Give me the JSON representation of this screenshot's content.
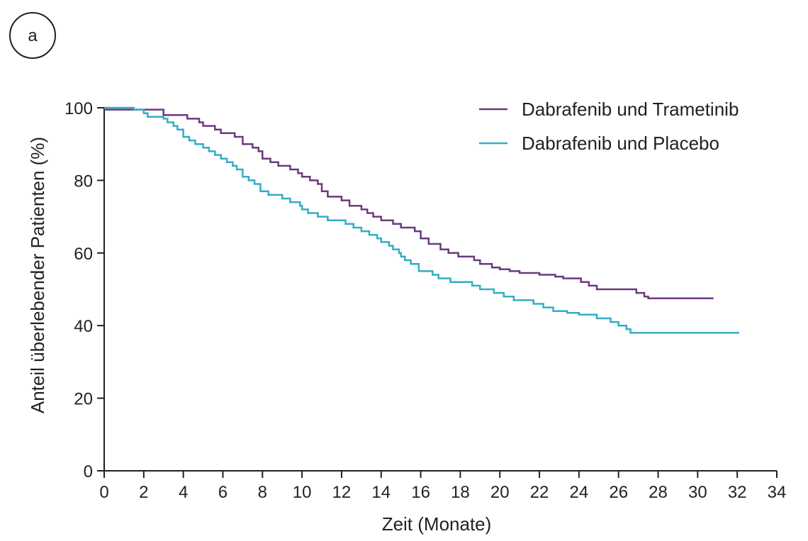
{
  "panel_label": "a",
  "chart_data": {
    "type": "line",
    "step": true,
    "title": "",
    "xlabel": "Zeit (Monate)",
    "ylabel": "Anteil überlebender Patienten (%)",
    "xlim": [
      0,
      34
    ],
    "ylim": [
      0,
      100
    ],
    "xticks": [
      0,
      2,
      4,
      6,
      8,
      10,
      12,
      14,
      16,
      18,
      20,
      22,
      24,
      26,
      28,
      30,
      32,
      34
    ],
    "yticks": [
      0,
      20,
      40,
      60,
      80,
      100
    ],
    "grid": false,
    "legend_position": "top-right",
    "colors": {
      "axis": "#231f20"
    },
    "series": [
      {
        "name": "Dabrafenib und Trametinib",
        "color": "#6b3a7d",
        "points": [
          [
            0,
            99.5
          ],
          [
            2.7,
            99.5
          ],
          [
            3.0,
            98
          ],
          [
            4.2,
            97
          ],
          [
            4.8,
            96
          ],
          [
            5.0,
            95
          ],
          [
            5.6,
            94
          ],
          [
            5.9,
            93
          ],
          [
            6.6,
            92
          ],
          [
            7.0,
            90
          ],
          [
            7.5,
            89
          ],
          [
            7.8,
            88
          ],
          [
            8.0,
            86
          ],
          [
            8.4,
            85
          ],
          [
            8.8,
            84
          ],
          [
            9.4,
            83
          ],
          [
            9.8,
            82
          ],
          [
            10.0,
            81
          ],
          [
            10.4,
            80
          ],
          [
            10.8,
            79
          ],
          [
            11.0,
            77
          ],
          [
            11.3,
            75.5
          ],
          [
            12.0,
            74.5
          ],
          [
            12.4,
            73
          ],
          [
            13.0,
            72
          ],
          [
            13.3,
            71
          ],
          [
            13.6,
            70
          ],
          [
            14.0,
            69
          ],
          [
            14.6,
            68
          ],
          [
            15.0,
            67
          ],
          [
            15.7,
            66
          ],
          [
            16.0,
            64
          ],
          [
            16.4,
            62.5
          ],
          [
            17.0,
            61
          ],
          [
            17.4,
            60
          ],
          [
            17.9,
            59
          ],
          [
            18.7,
            58
          ],
          [
            19.0,
            57
          ],
          [
            19.6,
            56
          ],
          [
            20.0,
            55.5
          ],
          [
            20.5,
            55
          ],
          [
            21.0,
            54.5
          ],
          [
            22.0,
            54
          ],
          [
            22.8,
            53.5
          ],
          [
            23.2,
            53
          ],
          [
            24.1,
            52
          ],
          [
            24.5,
            51
          ],
          [
            24.9,
            50
          ],
          [
            26.6,
            50
          ],
          [
            26.9,
            49
          ],
          [
            27.3,
            48
          ],
          [
            27.5,
            47.5
          ],
          [
            30.8,
            47.5
          ]
        ]
      },
      {
        "name": "Dabrafenib und Placebo",
        "color": "#34adc4",
        "points": [
          [
            0,
            100
          ],
          [
            1.5,
            99.5
          ],
          [
            2.0,
            98.5
          ],
          [
            2.2,
            97.5
          ],
          [
            3.0,
            97
          ],
          [
            3.2,
            96
          ],
          [
            3.5,
            95
          ],
          [
            3.7,
            94
          ],
          [
            4.0,
            92
          ],
          [
            4.3,
            91
          ],
          [
            4.6,
            90
          ],
          [
            5.0,
            89
          ],
          [
            5.3,
            88
          ],
          [
            5.6,
            87
          ],
          [
            5.9,
            86
          ],
          [
            6.2,
            85
          ],
          [
            6.5,
            84
          ],
          [
            6.7,
            83
          ],
          [
            7.0,
            81
          ],
          [
            7.3,
            80
          ],
          [
            7.6,
            79
          ],
          [
            7.9,
            77
          ],
          [
            8.3,
            76
          ],
          [
            9.0,
            75
          ],
          [
            9.4,
            74
          ],
          [
            9.9,
            73
          ],
          [
            10.0,
            72
          ],
          [
            10.3,
            71
          ],
          [
            10.8,
            70
          ],
          [
            11.3,
            69
          ],
          [
            12.2,
            68
          ],
          [
            12.6,
            67
          ],
          [
            13.0,
            66
          ],
          [
            13.4,
            65
          ],
          [
            13.8,
            64
          ],
          [
            14.0,
            63
          ],
          [
            14.4,
            62
          ],
          [
            14.6,
            61
          ],
          [
            14.9,
            60
          ],
          [
            15.0,
            59
          ],
          [
            15.2,
            58
          ],
          [
            15.5,
            57
          ],
          [
            15.9,
            55
          ],
          [
            16.6,
            54
          ],
          [
            16.9,
            53
          ],
          [
            17.5,
            52
          ],
          [
            18.6,
            51
          ],
          [
            19.0,
            50
          ],
          [
            19.7,
            49
          ],
          [
            20.2,
            48
          ],
          [
            20.7,
            47
          ],
          [
            21.7,
            46
          ],
          [
            22.2,
            45
          ],
          [
            22.7,
            44
          ],
          [
            23.4,
            43.5
          ],
          [
            24.0,
            43
          ],
          [
            24.9,
            42
          ],
          [
            25.6,
            41
          ],
          [
            26.0,
            40
          ],
          [
            26.4,
            39
          ],
          [
            26.6,
            38
          ],
          [
            32.1,
            38
          ]
        ]
      }
    ]
  }
}
